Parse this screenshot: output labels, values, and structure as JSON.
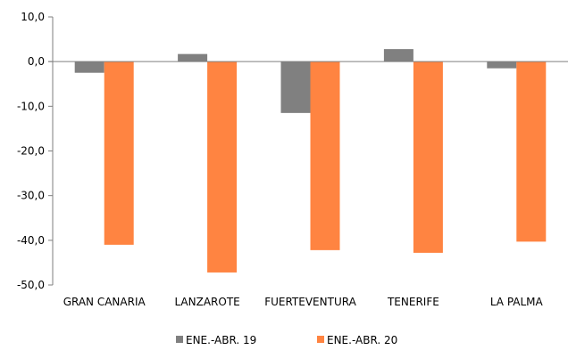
{
  "chart_data": {
    "type": "bar",
    "title": "",
    "xlabel": "",
    "ylabel": "",
    "categories": [
      "GRAN CANARIA",
      "LANZAROTE",
      "FUERTEVENTURA",
      "TENERIFE",
      "LA PALMA"
    ],
    "series": [
      {
        "name": "ENE.-ABR. 19",
        "color": "#808080",
        "values": [
          -2.5,
          1.7,
          -11.5,
          2.8,
          -1.5
        ]
      },
      {
        "name": "ENE.-ABR. 20",
        "color": "#FF8441",
        "values": [
          -41.0,
          -47.2,
          -42.2,
          -42.8,
          -40.3
        ]
      }
    ],
    "ylim": [
      -50,
      10
    ],
    "yticks": [
      10,
      0,
      -10,
      -20,
      -30,
      -40,
      -50
    ],
    "ytick_labels": [
      "10,0",
      "0,0",
      "-10,0",
      "-20,0",
      "-30,0",
      "-40,0",
      "-50,0"
    ],
    "grid": false,
    "legend_position": "bottom"
  }
}
